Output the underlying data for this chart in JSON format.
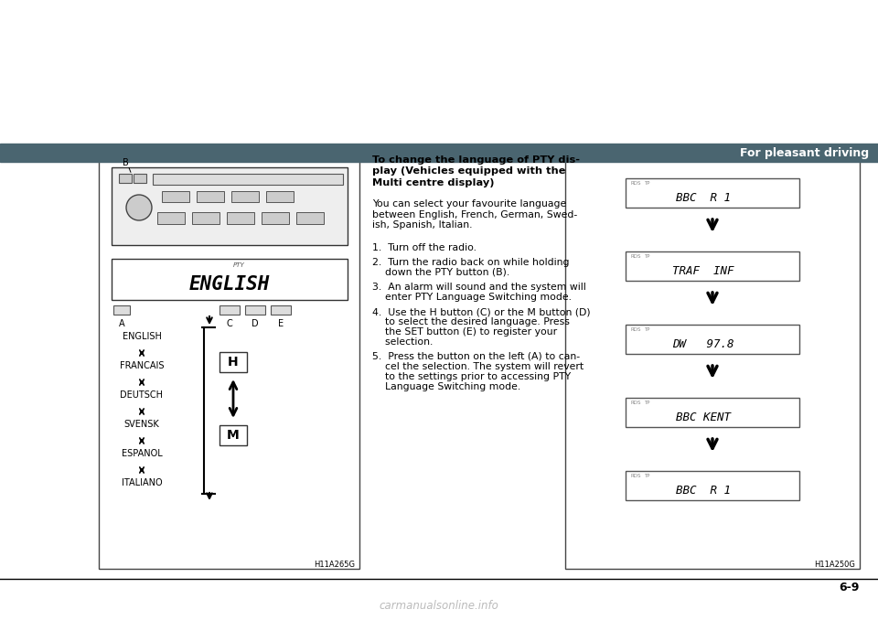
{
  "bg_color": "#ffffff",
  "header_color": "#4a6570",
  "header_text": "For pleasant driving",
  "header_text_color": "#ffffff",
  "title_bold_lines": [
    "To change the language of PTY dis-",
    "play (Vehicles equipped with the",
    "Multi centre display)"
  ],
  "intro_lines": [
    "You can select your favourite language",
    "between English, French, German, Swed-",
    "ish, Spanish, Italian."
  ],
  "steps": [
    [
      "1.  Turn off the radio."
    ],
    [
      "2.  Turn the radio back on while holding",
      "    down the PTY button (B)."
    ],
    [
      "3.  An alarm will sound and the system will",
      "    enter PTY Language Switching mode."
    ],
    [
      "4.  Use the H button (C) or the M button (D)",
      "    to select the desired language. Press",
      "    the SET button (E) to register your",
      "    selection."
    ],
    [
      "5.  Press the button on the left (A) to can-",
      "    cel the selection. The system will revert",
      "    to the settings prior to accessing PTY",
      "    Language Switching mode."
    ]
  ],
  "display_screens": [
    "BBC  R 1",
    "TRAF  INF",
    "DW   97.8",
    "BBC KENT",
    "BBC  R 1"
  ],
  "languages": [
    "ENGLISH",
    "FRANCAIS",
    "DEUTSCH",
    "SVENSK",
    "ESPANOL",
    "ITALIANO"
  ],
  "ref_left": "H11A265G",
  "ref_right": "H11A250G",
  "page_number": "6-9",
  "watermark": "carmanualsonline.info"
}
